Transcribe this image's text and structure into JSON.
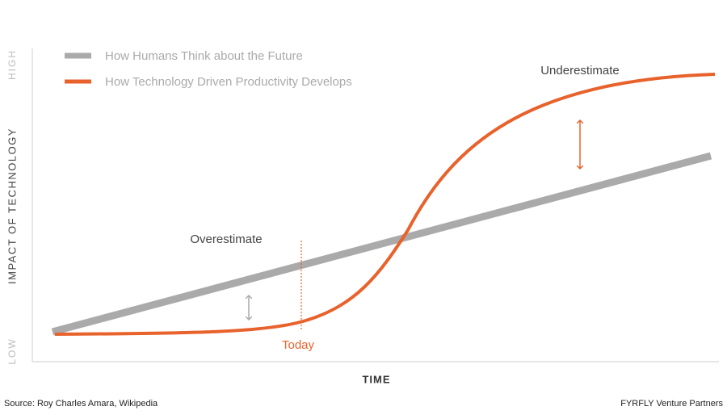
{
  "axes": {
    "y_high": "HIGH",
    "y_low": "LOW",
    "y_title": "IMPACT OF TECHNOLOGY",
    "x_title": "TIME"
  },
  "legend": [
    "How Humans Think about the Future",
    "How Technology Driven Productivity Develops"
  ],
  "annotations": {
    "overestimate": "Overestimate",
    "underestimate": "Underestimate",
    "today": "Today"
  },
  "footer": {
    "source": "Source: Roy Charles Amara, Wikipedia",
    "credit": "FYRFLY Venture Partners"
  }
}
